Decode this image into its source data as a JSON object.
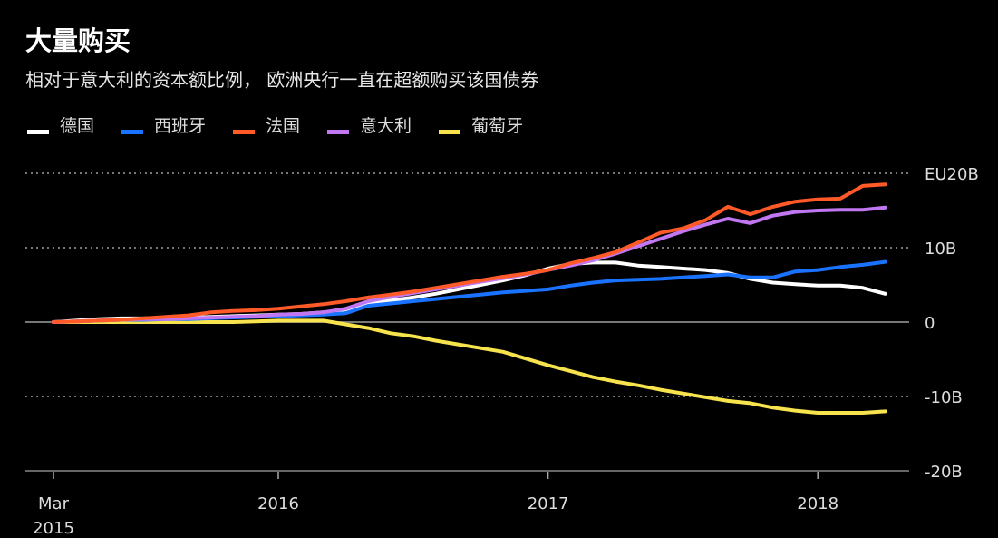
{
  "title": "大量购买",
  "subtitle": "相对于意大利的资本额比例， 欧洲央行一直在超额购买该国债券",
  "chart_data": {
    "type": "line",
    "title": "大量购买",
    "subtitle": "相对于意大利的资本额比例， 欧洲央行一直在超额购买该国债券",
    "x_start": "2015-03",
    "x": [
      "2015-03",
      "2015-04",
      "2015-05",
      "2015-06",
      "2015-07",
      "2015-08",
      "2015-09",
      "2015-10",
      "2015-11",
      "2015-12",
      "2016-01",
      "2016-02",
      "2016-03",
      "2016-04",
      "2016-05",
      "2016-06",
      "2016-07",
      "2016-08",
      "2016-09",
      "2016-10",
      "2016-11",
      "2016-12",
      "2017-01",
      "2017-02",
      "2017-03",
      "2017-04",
      "2017-05",
      "2017-06",
      "2017-07",
      "2017-08",
      "2017-09",
      "2017-10",
      "2017-11",
      "2017-12",
      "2018-01",
      "2018-02",
      "2018-03",
      "2018-04"
    ],
    "x_ticks": [
      {
        "date": "2015-03",
        "label": "Mar",
        "label2": "2015"
      },
      {
        "date": "2016-01",
        "label": "2016"
      },
      {
        "date": "2017-01",
        "label": "2017"
      },
      {
        "date": "2018-01",
        "label": "2018"
      }
    ],
    "y_ticks": [
      {
        "value": 20,
        "label": "EU20B"
      },
      {
        "value": 10,
        "label": "10B"
      },
      {
        "value": 0,
        "label": "0"
      },
      {
        "value": -10,
        "label": "-10B"
      },
      {
        "value": -20,
        "label": "-20B"
      }
    ],
    "ylim": [
      -20,
      20
    ],
    "y_unit": "EUR billions",
    "grid": true,
    "legend_position": "top-left",
    "series": [
      {
        "name": "德国",
        "color": "#ffffff",
        "values": [
          0,
          0.2,
          0.4,
          0.5,
          0.5,
          0.6,
          0.6,
          0.7,
          0.8,
          0.9,
          1.0,
          1.1,
          1.3,
          1.7,
          2.4,
          2.9,
          3.3,
          3.8,
          4.4,
          5.0,
          5.6,
          6.3,
          7.2,
          7.8,
          8.0,
          8.0,
          7.6,
          7.4,
          7.2,
          7.0,
          6.6,
          5.8,
          5.3,
          5.1,
          4.9,
          4.9,
          4.6,
          3.8
        ]
      },
      {
        "name": "西班牙",
        "color": "#1a73ff",
        "values": [
          0,
          0.1,
          0.2,
          0.3,
          0.3,
          0.4,
          0.4,
          0.5,
          0.6,
          0.7,
          0.8,
          0.9,
          1.0,
          1.2,
          2.2,
          2.5,
          2.8,
          3.1,
          3.4,
          3.7,
          4.0,
          4.2,
          4.4,
          4.9,
          5.3,
          5.6,
          5.7,
          5.8,
          6.0,
          6.2,
          6.4,
          6.0,
          6.0,
          6.8,
          7.0,
          7.4,
          7.7,
          8.1
        ]
      },
      {
        "name": "法国",
        "color": "#ff5a28",
        "values": [
          0,
          0.1,
          0.2,
          0.3,
          0.5,
          0.7,
          0.9,
          1.3,
          1.5,
          1.6,
          1.8,
          2.1,
          2.4,
          2.8,
          3.3,
          3.7,
          4.1,
          4.6,
          5.1,
          5.6,
          6.1,
          6.5,
          7.0,
          7.9,
          8.6,
          9.4,
          10.7,
          12.0,
          12.6,
          13.7,
          15.5,
          14.5,
          15.5,
          16.2,
          16.5,
          16.6,
          18.3,
          18.5
        ]
      },
      {
        "name": "意大利",
        "color": "#c277f2",
        "values": [
          0,
          0.1,
          0.2,
          0.3,
          0.4,
          0.4,
          0.5,
          0.6,
          0.7,
          0.8,
          1.0,
          1.1,
          1.3,
          1.8,
          2.8,
          3.4,
          3.9,
          4.4,
          4.9,
          5.4,
          5.9,
          6.4,
          7.0,
          7.6,
          8.3,
          9.2,
          10.2,
          11.2,
          12.2,
          13.1,
          13.9,
          13.3,
          14.3,
          14.8,
          15.0,
          15.1,
          15.1,
          15.4
        ]
      },
      {
        "name": "葡萄牙",
        "color": "#f7e34d",
        "values": [
          0,
          0,
          0,
          0,
          0,
          0,
          0,
          0,
          0,
          0.1,
          0.2,
          0.2,
          0.2,
          -0.3,
          -0.8,
          -1.5,
          -1.9,
          -2.5,
          -3.0,
          -3.5,
          -4.0,
          -4.9,
          -5.8,
          -6.6,
          -7.4,
          -8.0,
          -8.5,
          -9.1,
          -9.6,
          -10.1,
          -10.6,
          -10.9,
          -11.5,
          -11.9,
          -12.2,
          -12.2,
          -12.2,
          -12.0
        ]
      }
    ]
  }
}
